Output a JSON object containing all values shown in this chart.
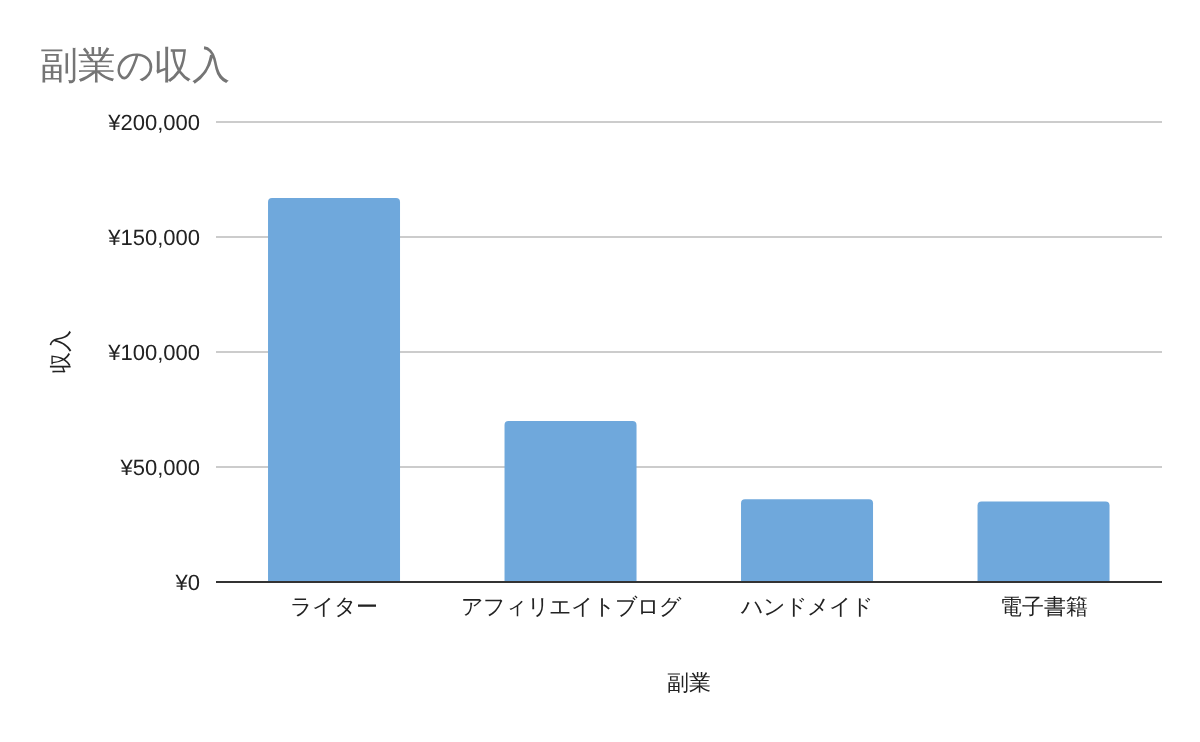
{
  "chart_data": {
    "type": "bar",
    "title": "副業の収入",
    "xlabel": "副業",
    "ylabel": "収入",
    "categories": [
      "ライター",
      "アフィリエイトブログ",
      "ハンドメイド",
      "電子書籍"
    ],
    "values": [
      167000,
      70000,
      36000,
      35000
    ],
    "color": "#6fa8dc",
    "ylim": [
      0,
      200000
    ],
    "yticks": [
      {
        "value": 0,
        "label": "¥0"
      },
      {
        "value": 50000,
        "label": "¥50,000"
      },
      {
        "value": 100000,
        "label": "¥100,000"
      },
      {
        "value": 150000,
        "label": "¥150,000"
      },
      {
        "value": 200000,
        "label": "¥200,000"
      }
    ],
    "grid": "y"
  }
}
